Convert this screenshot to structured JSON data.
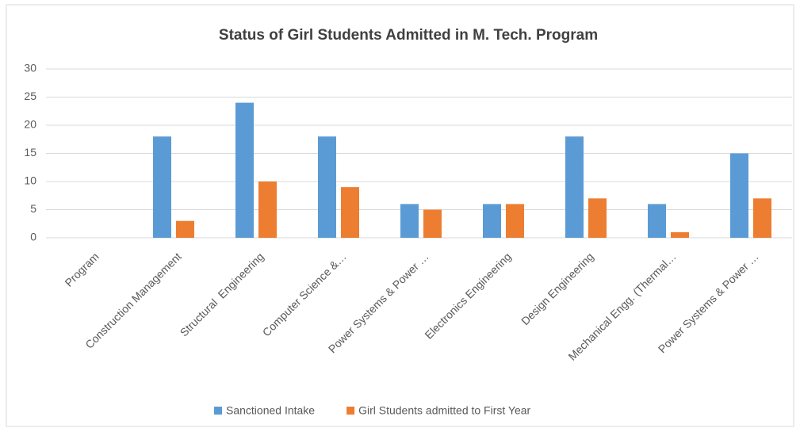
{
  "chart_data": {
    "type": "bar",
    "title": "Status of Girl Students Admitted in M. Tech. Program",
    "categories": [
      "Program",
      "Construction Management",
      "Structural  Engineering",
      "Computer Science &…",
      "Power Systems & Power …",
      "Electronics Engineering",
      "Design Engineering",
      "Mechanical Engg. (Thermal…",
      "Power Systems & Power …"
    ],
    "series": [
      {
        "name": "Sanctioned Intake",
        "color": "#5b9bd5",
        "values": [
          null,
          18,
          24,
          18,
          6,
          6,
          18,
          6,
          15
        ]
      },
      {
        "name": "Girl Students admitted to First Year",
        "color": "#ed7d31",
        "values": [
          null,
          3,
          10,
          9,
          5,
          6,
          7,
          1,
          7
        ]
      }
    ],
    "ylim": [
      0,
      30
    ],
    "yticks": [
      0,
      5,
      10,
      15,
      20,
      25,
      30
    ],
    "grid": true,
    "legend": "bottom"
  }
}
